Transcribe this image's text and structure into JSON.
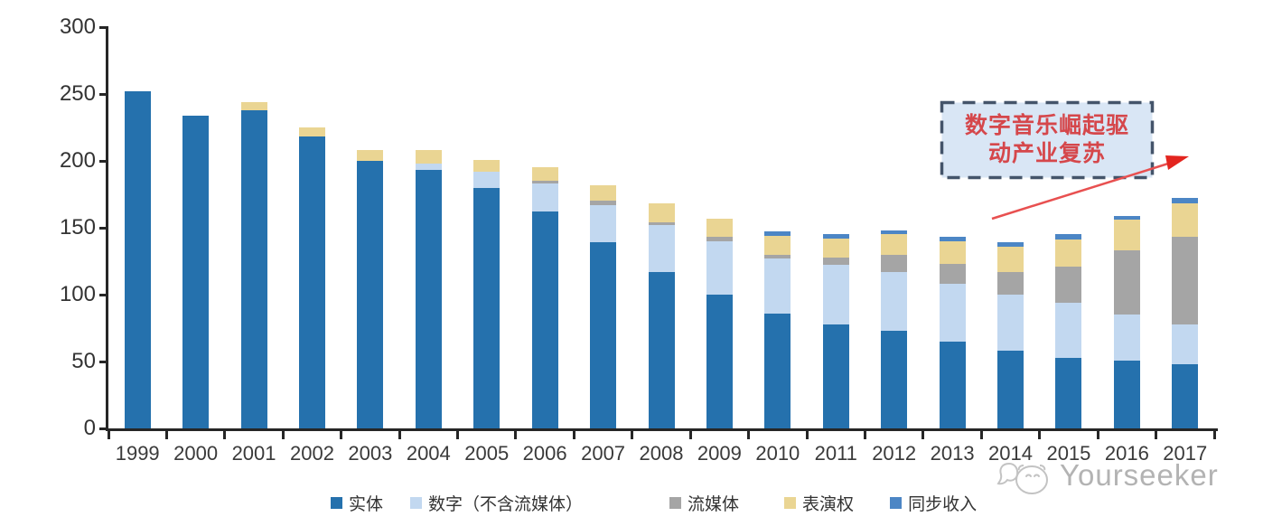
{
  "page": {
    "background": "#FFFFFF"
  },
  "chart_data": {
    "type": "bar",
    "stacked": true,
    "orientation": "vertical",
    "categories": [
      1999,
      2000,
      2001,
      2002,
      2003,
      2004,
      2005,
      2006,
      2007,
      2008,
      2009,
      2010,
      2011,
      2012,
      2013,
      2014,
      2015,
      2016,
      2017
    ],
    "series": [
      {
        "name": "实体",
        "color": "#2571AD",
        "values": [
          252,
          234,
          238,
          218,
          200,
          193,
          180,
          162,
          139,
          117,
          100,
          86,
          78,
          73,
          65,
          58,
          53,
          51,
          48
        ]
      },
      {
        "name": "数字（不含流媒体）",
        "color": "#C2D8F0",
        "values": [
          0,
          0,
          0,
          0,
          0,
          5,
          12,
          21,
          28,
          35,
          40,
          41,
          44,
          44,
          43,
          42,
          41,
          34,
          30
        ]
      },
      {
        "name": "流媒体",
        "color": "#A5A5A5",
        "values": [
          0,
          0,
          0,
          0,
          0,
          0,
          0,
          2,
          3,
          2,
          3,
          3,
          6,
          13,
          15,
          17,
          27,
          48,
          65
        ]
      },
      {
        "name": "表演权",
        "color": "#EAD593",
        "values": [
          0,
          0,
          6,
          7,
          8,
          10,
          9,
          10,
          12,
          14,
          14,
          14,
          14,
          15,
          17,
          19,
          20,
          23,
          25
        ]
      },
      {
        "name": "同步收入",
        "color": "#4C86C5",
        "values": [
          0,
          0,
          0,
          0,
          0,
          0,
          0,
          0,
          0,
          0,
          0,
          3,
          3,
          3,
          3,
          3,
          4,
          3,
          4
        ]
      }
    ],
    "title": "",
    "xlabel": "",
    "ylabel": "",
    "ylim": [
      0,
      300
    ],
    "yticks": [
      0,
      50,
      100,
      150,
      200,
      250,
      300
    ],
    "grid": false,
    "legend_position": "bottom",
    "axis_color": "#262626",
    "tick_label_color": "#333333",
    "annotation": {
      "text_line1": "数字音乐崛起驱",
      "text_line2": "动产业复苏",
      "box_fill": "#D9E6F5",
      "box_border_color": "#44546A",
      "text_color": "#D5474B",
      "arrow_color": "#E85050",
      "arrowhead_color": "#E3251F"
    }
  },
  "watermark": {
    "brand": "Yourseeker",
    "logo_icon": "mascot-face-icon",
    "color": "#B3B3B3"
  }
}
